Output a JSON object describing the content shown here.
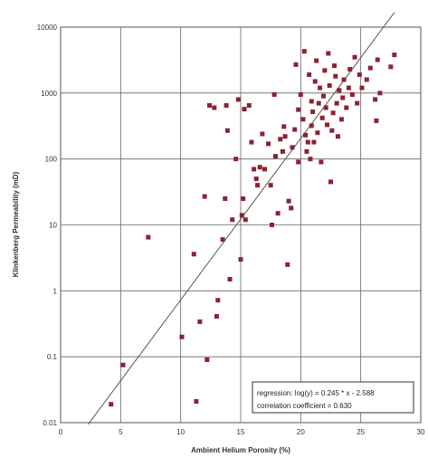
{
  "chart_data": {
    "type": "scatter",
    "xlabel": "Ambient Helium Porosity (%)",
    "ylabel": "Klinkenberg Permeability (mD)",
    "xlim": [
      0,
      30
    ],
    "ylim": [
      0.01,
      10000
    ],
    "y_scale": "log",
    "grid": true,
    "x_ticks": [
      0,
      5,
      10,
      15,
      20,
      25,
      30
    ],
    "y_ticks": [
      0.01,
      0.1,
      1,
      10,
      100,
      1000,
      10000
    ],
    "x_tick_labels": [
      "0",
      "5",
      "10",
      "15",
      "20",
      "25",
      "30"
    ],
    "y_tick_labels": [
      "0.01",
      "0.1",
      "1",
      "10",
      "100",
      "1000",
      "10000"
    ],
    "marker_color": "#8b2332",
    "line_color": "#555555",
    "regression": {
      "slope": 0.245,
      "intercept": -2.588,
      "x_from": 2.3,
      "x_to": 27.8
    },
    "annotation": {
      "line1": "regression: log(y) = 0.245 * x - 2.588",
      "line2": "correlation coefficient = 0.630"
    },
    "points": [
      {
        "x": 4.2,
        "y": 0.019
      },
      {
        "x": 5.2,
        "y": 0.075
      },
      {
        "x": 7.3,
        "y": 6.5
      },
      {
        "x": 10.1,
        "y": 0.2
      },
      {
        "x": 11.1,
        "y": 3.6
      },
      {
        "x": 11.3,
        "y": 0.021
      },
      {
        "x": 11.6,
        "y": 0.34
      },
      {
        "x": 12.0,
        "y": 27
      },
      {
        "x": 12.2,
        "y": 0.09
      },
      {
        "x": 12.4,
        "y": 650
      },
      {
        "x": 12.8,
        "y": 600
      },
      {
        "x": 13.0,
        "y": 0.41
      },
      {
        "x": 13.1,
        "y": 0.72
      },
      {
        "x": 13.5,
        "y": 6
      },
      {
        "x": 13.7,
        "y": 25
      },
      {
        "x": 13.8,
        "y": 650
      },
      {
        "x": 13.9,
        "y": 270
      },
      {
        "x": 14.1,
        "y": 1.5
      },
      {
        "x": 14.3,
        "y": 12
      },
      {
        "x": 14.6,
        "y": 100
      },
      {
        "x": 14.8,
        "y": 800
      },
      {
        "x": 15.0,
        "y": 3
      },
      {
        "x": 15.1,
        "y": 14
      },
      {
        "x": 15.2,
        "y": 25
      },
      {
        "x": 15.3,
        "y": 570
      },
      {
        "x": 15.4,
        "y": 12
      },
      {
        "x": 15.7,
        "y": 650
      },
      {
        "x": 15.9,
        "y": 180
      },
      {
        "x": 16.1,
        "y": 70
      },
      {
        "x": 16.3,
        "y": 50
      },
      {
        "x": 16.4,
        "y": 40
      },
      {
        "x": 16.6,
        "y": 75
      },
      {
        "x": 16.8,
        "y": 240
      },
      {
        "x": 17.0,
        "y": 70
      },
      {
        "x": 17.3,
        "y": 170
      },
      {
        "x": 17.5,
        "y": 40
      },
      {
        "x": 17.6,
        "y": 10
      },
      {
        "x": 17.8,
        "y": 950
      },
      {
        "x": 17.9,
        "y": 110
      },
      {
        "x": 18.1,
        "y": 15
      },
      {
        "x": 18.3,
        "y": 200
      },
      {
        "x": 18.5,
        "y": 130
      },
      {
        "x": 18.7,
        "y": 220
      },
      {
        "x": 18.9,
        "y": 2.5
      },
      {
        "x": 19.0,
        "y": 23
      },
      {
        "x": 19.2,
        "y": 18
      },
      {
        "x": 19.3,
        "y": 150
      },
      {
        "x": 19.5,
        "y": 280
      },
      {
        "x": 19.6,
        "y": 2700
      },
      {
        "x": 19.8,
        "y": 90
      },
      {
        "x": 20.0,
        "y": 950
      },
      {
        "x": 20.2,
        "y": 400
      },
      {
        "x": 20.3,
        "y": 4300
      },
      {
        "x": 20.4,
        "y": 230
      },
      {
        "x": 20.5,
        "y": 130
      },
      {
        "x": 20.6,
        "y": 180
      },
      {
        "x": 20.7,
        "y": 1900
      },
      {
        "x": 20.8,
        "y": 100
      },
      {
        "x": 20.9,
        "y": 320
      },
      {
        "x": 21.0,
        "y": 520
      },
      {
        "x": 21.1,
        "y": 180
      },
      {
        "x": 21.2,
        "y": 1500
      },
      {
        "x": 21.3,
        "y": 3100
      },
      {
        "x": 21.4,
        "y": 250
      },
      {
        "x": 21.5,
        "y": 700
      },
      {
        "x": 21.6,
        "y": 1200
      },
      {
        "x": 21.7,
        "y": 90
      },
      {
        "x": 21.8,
        "y": 420
      },
      {
        "x": 21.9,
        "y": 900
      },
      {
        "x": 22.0,
        "y": 2200
      },
      {
        "x": 22.1,
        "y": 600
      },
      {
        "x": 22.2,
        "y": 330
      },
      {
        "x": 22.3,
        "y": 4000
      },
      {
        "x": 22.4,
        "y": 1300
      },
      {
        "x": 22.5,
        "y": 45
      },
      {
        "x": 22.6,
        "y": 270
      },
      {
        "x": 22.7,
        "y": 500
      },
      {
        "x": 22.8,
        "y": 2600
      },
      {
        "x": 22.9,
        "y": 1800
      },
      {
        "x": 23.0,
        "y": 700
      },
      {
        "x": 23.1,
        "y": 220
      },
      {
        "x": 23.2,
        "y": 1100
      },
      {
        "x": 23.4,
        "y": 400
      },
      {
        "x": 23.5,
        "y": 850
      },
      {
        "x": 23.6,
        "y": 1600
      },
      {
        "x": 23.8,
        "y": 600
      },
      {
        "x": 24.0,
        "y": 1200
      },
      {
        "x": 24.1,
        "y": 2300
      },
      {
        "x": 24.3,
        "y": 950
      },
      {
        "x": 24.5,
        "y": 3500
      },
      {
        "x": 24.7,
        "y": 700
      },
      {
        "x": 24.9,
        "y": 1900
      },
      {
        "x": 25.1,
        "y": 1200
      },
      {
        "x": 25.5,
        "y": 1600
      },
      {
        "x": 25.8,
        "y": 2400
      },
      {
        "x": 26.2,
        "y": 800
      },
      {
        "x": 26.3,
        "y": 380
      },
      {
        "x": 26.6,
        "y": 1000
      },
      {
        "x": 27.5,
        "y": 2500
      },
      {
        "x": 27.8,
        "y": 3800
      },
      {
        "x": 26.4,
        "y": 3200
      },
      {
        "x": 19.8,
        "y": 560
      },
      {
        "x": 20.9,
        "y": 750
      },
      {
        "x": 18.6,
        "y": 310
      }
    ]
  }
}
